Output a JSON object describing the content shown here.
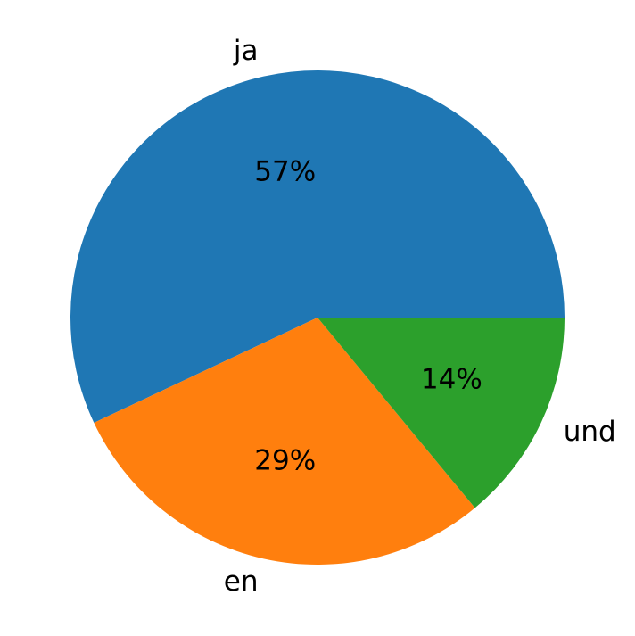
{
  "chart_data": {
    "type": "pie",
    "categories": [
      "ja",
      "en",
      "und"
    ],
    "values": [
      57,
      29,
      14
    ],
    "value_labels": [
      "57%",
      "29%",
      "14%"
    ],
    "colors": [
      "#1f77b4",
      "#ff7f0e",
      "#2ca02c"
    ]
  }
}
